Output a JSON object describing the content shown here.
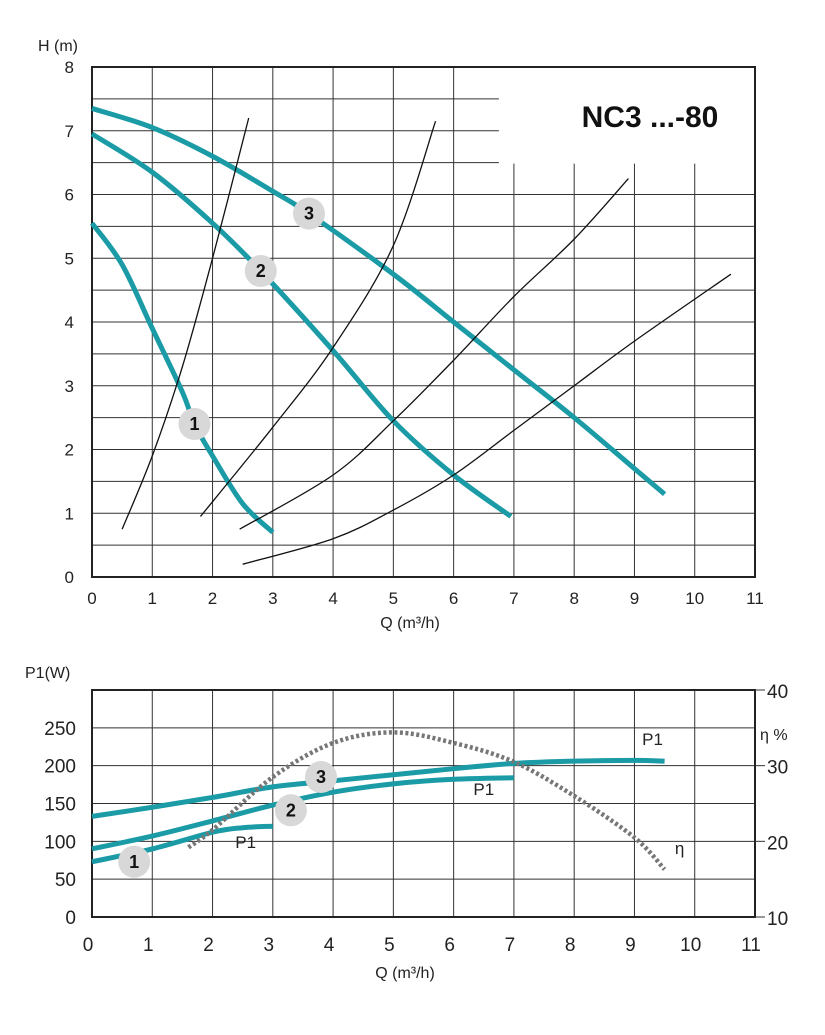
{
  "colors": {
    "pump_curve": "#1a9ba6",
    "system_curve": "#111111",
    "efficiency": "#777777",
    "bubble": "#d8d8d8"
  },
  "chart_data": [
    {
      "type": "line",
      "title": "NC3 ...-80",
      "xlabel": "Q (m³/h)",
      "ylabel": "H (m)",
      "xlim": [
        0,
        11
      ],
      "ylim": [
        0,
        8
      ],
      "xticks": [
        "0",
        "1",
        "2",
        "3",
        "4",
        "5",
        "6",
        "7",
        "8",
        "9",
        "10",
        "11"
      ],
      "yticks": [
        "0",
        "1",
        "2",
        "3",
        "4",
        "5",
        "6",
        "7",
        "8"
      ],
      "grid": true,
      "series": [
        {
          "name": "1",
          "kind": "pump",
          "points": [
            [
              0,
              5.55
            ],
            [
              0.5,
              4.9
            ],
            [
              1,
              3.9
            ],
            [
              1.5,
              2.9
            ],
            [
              1.7,
              2.4
            ],
            [
              2,
              1.9
            ],
            [
              2.5,
              1.15
            ],
            [
              3,
              0.7
            ]
          ],
          "marker_at": [
            1.7,
            2.4
          ]
        },
        {
          "name": "2",
          "kind": "pump",
          "points": [
            [
              0,
              6.95
            ],
            [
              1,
              6.35
            ],
            [
              2,
              5.55
            ],
            [
              2.8,
              4.8
            ],
            [
              4,
              3.55
            ],
            [
              5,
              2.45
            ],
            [
              6,
              1.6
            ],
            [
              6.95,
              0.95
            ]
          ],
          "marker_at": [
            2.8,
            4.8
          ]
        },
        {
          "name": "3",
          "kind": "pump",
          "points": [
            [
              0,
              7.35
            ],
            [
              1,
              7.05
            ],
            [
              2,
              6.6
            ],
            [
              3,
              6.05
            ],
            [
              3.6,
              5.7
            ],
            [
              5,
              4.75
            ],
            [
              6,
              4.0
            ],
            [
              7,
              3.25
            ],
            [
              8,
              2.5
            ],
            [
              9,
              1.7
            ],
            [
              9.5,
              1.3
            ]
          ],
          "marker_at": [
            3.6,
            5.7
          ]
        },
        {
          "kind": "system",
          "points": [
            [
              0.5,
              0.75
            ],
            [
              1,
              1.9
            ],
            [
              1.5,
              3.3
            ],
            [
              2,
              5.0
            ],
            [
              2.6,
              7.2
            ]
          ]
        },
        {
          "kind": "system",
          "points": [
            [
              1.8,
              0.95
            ],
            [
              3,
              2.35
            ],
            [
              4,
              3.6
            ],
            [
              5,
              5.2
            ],
            [
              5.7,
              7.15
            ]
          ]
        },
        {
          "kind": "system",
          "points": [
            [
              2.45,
              0.75
            ],
            [
              4,
              1.6
            ],
            [
              5,
              2.45
            ],
            [
              6,
              3.4
            ],
            [
              7,
              4.4
            ],
            [
              8,
              5.3
            ],
            [
              8.9,
              6.25
            ]
          ]
        },
        {
          "kind": "system",
          "points": [
            [
              2.5,
              0.2
            ],
            [
              4,
              0.6
            ],
            [
              5,
              1.05
            ],
            [
              6,
              1.6
            ],
            [
              7,
              2.3
            ],
            [
              8,
              3.0
            ],
            [
              9,
              3.7
            ],
            [
              10.6,
              4.75
            ]
          ]
        }
      ]
    },
    {
      "type": "line",
      "xlabel": "Q (m³/h)",
      "ylabel": "P1(W)",
      "y2label": "η %",
      "xlim": [
        0,
        11
      ],
      "ylim": [
        0,
        300
      ],
      "y2lim": [
        10,
        40
      ],
      "xticks": [
        "0",
        "1",
        "2",
        "3",
        "4",
        "5",
        "6",
        "7",
        "8",
        "9",
        "10",
        "11"
      ],
      "yticks": [
        "0",
        "50",
        "100",
        "150",
        "200",
        "250"
      ],
      "y2ticks": [
        "10",
        "20",
        "30",
        "40"
      ],
      "grid": true,
      "series": [
        {
          "name": "1",
          "kind": "power",
          "points": [
            [
              0,
              73
            ],
            [
              1,
              90
            ],
            [
              2,
              112
            ],
            [
              2.5,
              118
            ],
            [
              3,
              120
            ]
          ],
          "marker_at": [
            0.7,
            73
          ],
          "label": "P1",
          "label_at": [
            2.55,
            91
          ]
        },
        {
          "name": "2",
          "kind": "power",
          "points": [
            [
              0,
              90
            ],
            [
              1,
              107
            ],
            [
              2,
              127
            ],
            [
              3,
              148
            ],
            [
              4,
              165
            ],
            [
              5,
              176
            ],
            [
              6,
              182
            ],
            [
              7,
              184
            ]
          ],
          "marker_at": [
            3.3,
            141
          ],
          "label": "P1",
          "label_at": [
            6.5,
            161
          ]
        },
        {
          "name": "3",
          "kind": "power",
          "points": [
            [
              0,
              133
            ],
            [
              1,
              145
            ],
            [
              2,
              158
            ],
            [
              3,
              172
            ],
            [
              4,
              180
            ],
            [
              5,
              188
            ],
            [
              6,
              196
            ],
            [
              7,
              203
            ],
            [
              8,
              206
            ],
            [
              9,
              207
            ],
            [
              9.5,
              206
            ]
          ],
          "marker_at": [
            3.8,
            185
          ],
          "label": "P1",
          "label_at": [
            9.3,
            227
          ]
        },
        {
          "name": "η",
          "kind": "efficiency",
          "axis": "y2",
          "points": [
            [
              1.6,
              19.2
            ],
            [
              2,
              21.5
            ],
            [
              3,
              28.5
            ],
            [
              4,
              33
            ],
            [
              5,
              34.4
            ],
            [
              6,
              33
            ],
            [
              7,
              30.5
            ],
            [
              8,
              26
            ],
            [
              9,
              20.5
            ],
            [
              9.5,
              16.3
            ]
          ],
          "label": "η",
          "label_at": [
            9.75,
            18.3
          ]
        }
      ]
    }
  ]
}
